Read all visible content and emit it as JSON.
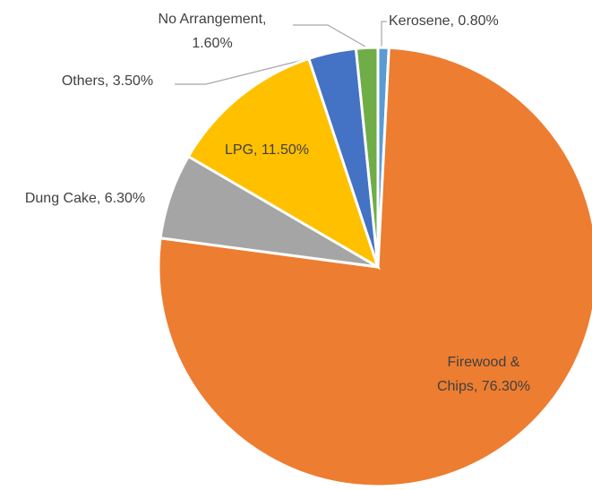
{
  "chart_data": {
    "type": "pie",
    "labels": [
      [
        "Kerosene, 0.80%"
      ],
      [
        "Firewood &",
        "Chips, 76.30%"
      ],
      [
        "Dung Cake, 6.30%"
      ],
      [
        "LPG, 11.50%"
      ],
      [
        "Others, 3.50%"
      ],
      [
        "No Arrangement,",
        "1.60%"
      ]
    ],
    "values": [
      0.8,
      76.3,
      6.3,
      11.5,
      3.5,
      1.6
    ],
    "colors": [
      "#5b9bd5",
      "#ed7d31",
      "#a5a5a5",
      "#ffc000",
      "#4472c4",
      "#70ad47"
    ]
  }
}
